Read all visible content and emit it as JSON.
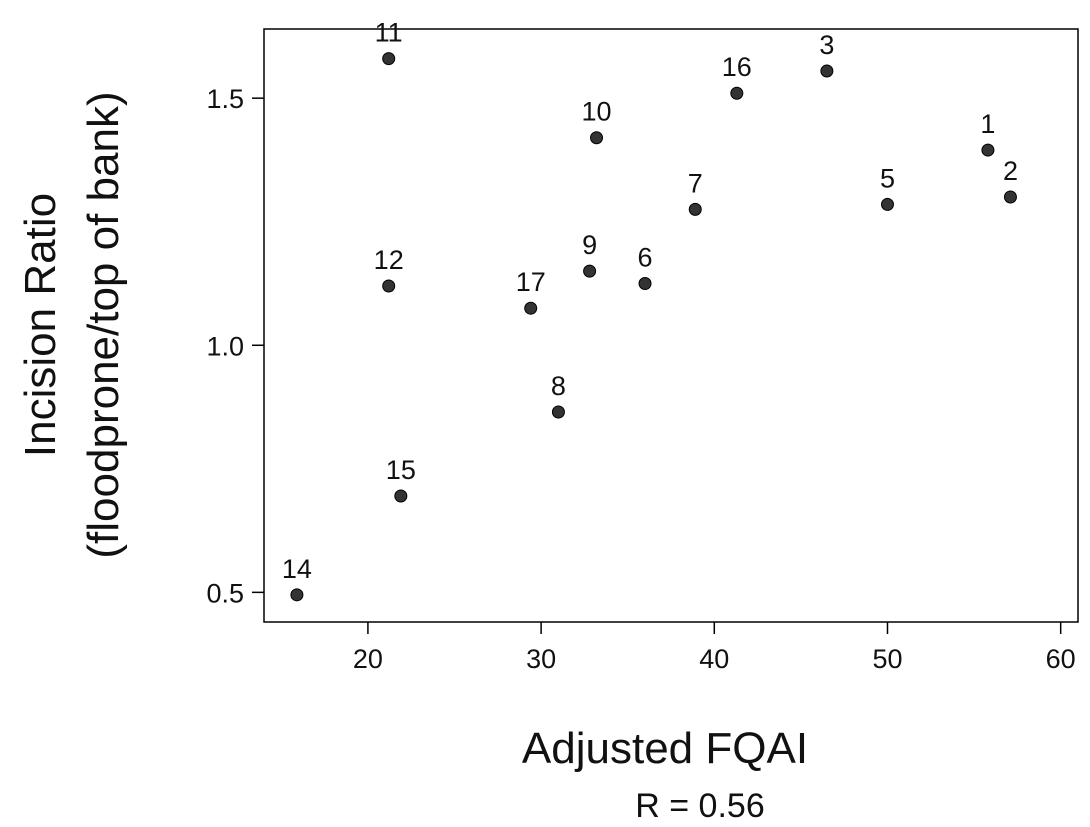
{
  "chart_data": {
    "type": "scatter",
    "title": "",
    "xlabel": "Adjusted FQAI",
    "ylabel_lines": [
      "Incision Ratio",
      "(floodprone/top of bank)"
    ],
    "annotation": "R = 0.56",
    "xlim": [
      14,
      61
    ],
    "ylim": [
      0.44,
      1.64
    ],
    "xticks": [
      20,
      30,
      40,
      50,
      60
    ],
    "yticks": [
      0.5,
      1.0,
      1.5
    ],
    "ytick_labels": [
      "0.5",
      "1.0",
      "1.5"
    ],
    "grid": false,
    "legend": "none",
    "point_color": "#333333",
    "points": [
      {
        "label": "1",
        "x": 55.8,
        "y": 1.395
      },
      {
        "label": "2",
        "x": 57.1,
        "y": 1.3
      },
      {
        "label": "3",
        "x": 46.5,
        "y": 1.555
      },
      {
        "label": "5",
        "x": 50.0,
        "y": 1.285
      },
      {
        "label": "6",
        "x": 36.0,
        "y": 1.125
      },
      {
        "label": "7",
        "x": 38.9,
        "y": 1.275
      },
      {
        "label": "8",
        "x": 31.0,
        "y": 0.865
      },
      {
        "label": "9",
        "x": 32.8,
        "y": 1.15
      },
      {
        "label": "10",
        "x": 33.2,
        "y": 1.42
      },
      {
        "label": "11",
        "x": 21.2,
        "y": 1.58
      },
      {
        "label": "12",
        "x": 21.2,
        "y": 1.12
      },
      {
        "label": "14",
        "x": 15.9,
        "y": 0.495
      },
      {
        "label": "15",
        "x": 21.9,
        "y": 0.695
      },
      {
        "label": "16",
        "x": 41.3,
        "y": 1.51
      },
      {
        "label": "17",
        "x": 29.4,
        "y": 1.075
      }
    ]
  }
}
